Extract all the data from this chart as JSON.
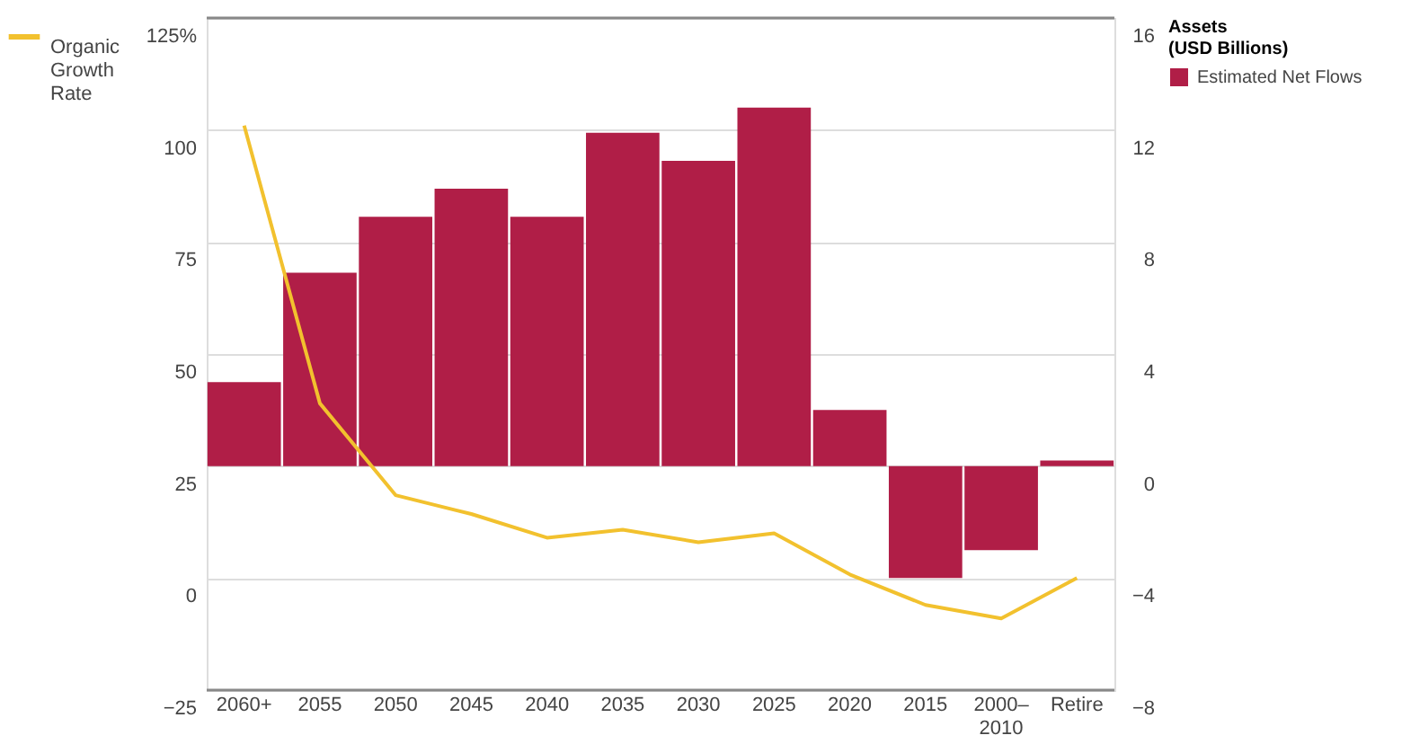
{
  "chart_data": {
    "type": "bar",
    "categories": [
      "2060+",
      "2055",
      "2050",
      "2045",
      "2040",
      "2035",
      "2030",
      "2025",
      "2020",
      "2015",
      "2000–\n2010",
      "Retire"
    ],
    "legend_title": "Assets (USD Billions)",
    "legend": "top right",
    "grid": "y",
    "series": [
      {
        "name": "Estimated Net Flows",
        "axis": "y2",
        "color": "#b01e47",
        "values": [
          3.0,
          6.9,
          8.9,
          9.9,
          8.9,
          11.9,
          10.9,
          12.8,
          2.0,
          -4.0,
          -3.0,
          0.2
        ]
      },
      {
        "name": "Organic Growth Rate",
        "type": "line",
        "color": "#f2c12e",
        "values": [
          101,
          39,
          18.5,
          14.3,
          9,
          10.8,
          8,
          10,
          0.8,
          -6,
          -9,
          0
        ]
      }
    ],
    "ylim": [
      -25,
      125
    ],
    "yticks": [
      -25,
      0,
      25,
      50,
      75,
      100,
      {
        "value": 125,
        "label": "125%"
      }
    ],
    "y2lim": [
      -8,
      16
    ],
    "y2ticks": [
      -8,
      -4,
      0,
      4,
      8,
      12,
      16
    ]
  }
}
